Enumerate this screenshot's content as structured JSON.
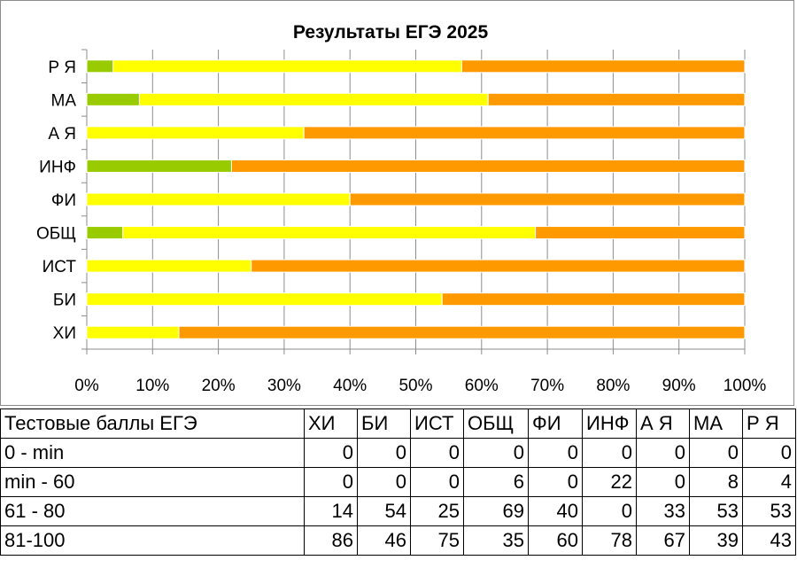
{
  "chart_data": {
    "type": "bar",
    "orientation": "horizontal",
    "stacked": "percent",
    "title": "Результаты ЕГЭ 2025",
    "categories": [
      "ХИ",
      "БИ",
      "ИСТ",
      "ОБЩ",
      "ФИ",
      "ИНФ",
      "А Я",
      "МА",
      "Р Я"
    ],
    "series": [
      {
        "name": "0 - min",
        "color": "#4a7ebb",
        "values": [
          0,
          0,
          0,
          0,
          0,
          0,
          0,
          0,
          0
        ]
      },
      {
        "name": "min - 60",
        "color": "#99cc00",
        "values": [
          0,
          0,
          0,
          6,
          0,
          22,
          0,
          8,
          4
        ]
      },
      {
        "name": "61 - 80",
        "color": "#ffff00",
        "values": [
          14,
          54,
          25,
          69,
          40,
          0,
          33,
          53,
          53
        ]
      },
      {
        "name": "81-100",
        "color": "#ff9900",
        "values": [
          86,
          46,
          75,
          35,
          60,
          78,
          67,
          39,
          43
        ]
      }
    ],
    "xticks": [
      "0%",
      "10%",
      "20%",
      "30%",
      "40%",
      "50%",
      "60%",
      "70%",
      "80%",
      "90%",
      "100%"
    ],
    "xlim": [
      0,
      100
    ],
    "grid": true,
    "legend": "none"
  },
  "table": {
    "header": "Тестовые баллы ЕГЭ"
  }
}
